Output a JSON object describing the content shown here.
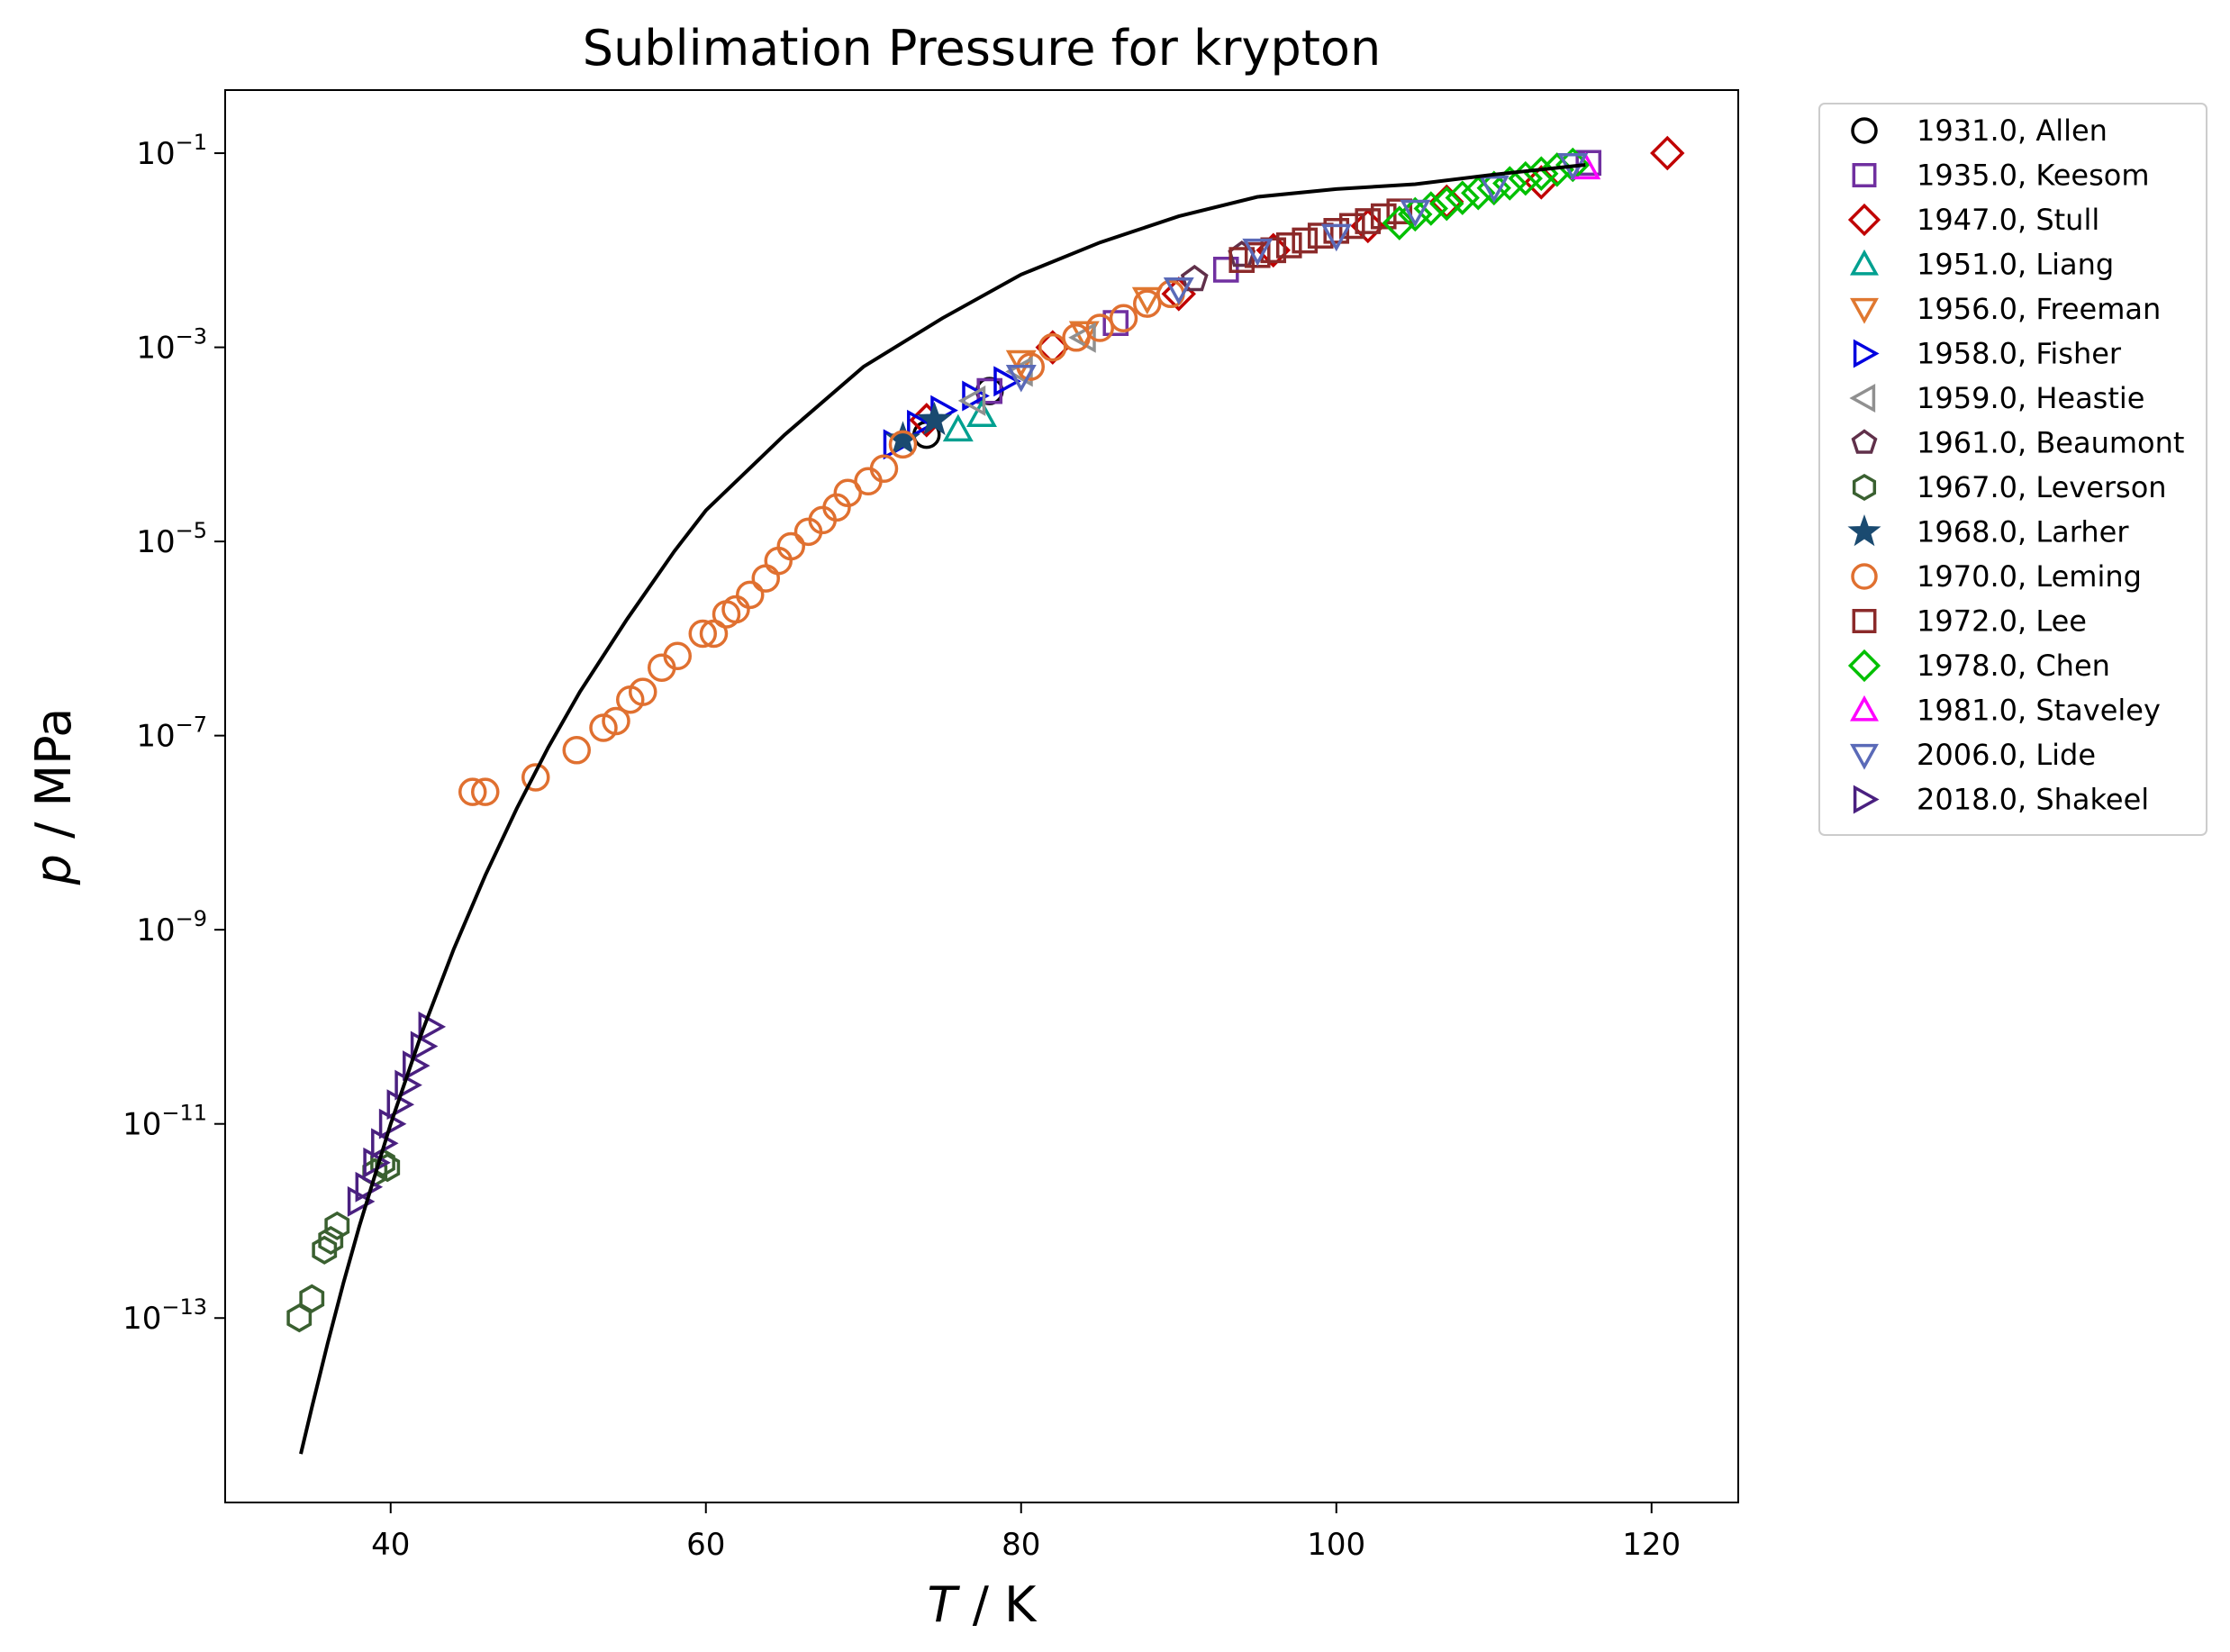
{
  "chart_data": {
    "type": "scatter",
    "title": "Sublimation Pressure for krypton",
    "xlabel_var": "T",
    "xlabel_unit": " / K",
    "ylabel_var": "p",
    "ylabel_unit": " / MPa",
    "xlim": [
      29.5,
      125.5
    ],
    "ylim_exp": [
      -14.9,
      -0.35
    ],
    "y_scale": "log",
    "x_ticks": [
      40,
      60,
      80,
      100,
      120
    ],
    "y_tick_exponents": [
      -13,
      -11,
      -9,
      -7,
      -5,
      -3,
      -1
    ],
    "y_tick_base": "10",
    "y_tick_exponent_labels": [
      "−13",
      "−11",
      "−9",
      "−7",
      "−5",
      "−3",
      "−1"
    ],
    "legend_position": "outside right",
    "fit_curve": {
      "color": "#000000",
      "T": [
        34.3,
        35,
        36,
        37,
        38,
        40,
        42,
        44,
        46,
        48,
        50,
        52,
        55,
        58,
        60,
        65,
        70,
        75,
        80,
        85,
        90,
        95,
        100,
        105,
        110,
        115.8
      ],
      "log10_p": [
        -14.4,
        -13.92,
        -13.26,
        -12.64,
        -12.06,
        -11.0,
        -10.05,
        -9.2,
        -8.44,
        -7.75,
        -7.12,
        -6.55,
        -5.8,
        -5.1,
        -4.68,
        -3.9,
        -3.2,
        -2.7,
        -2.25,
        -1.92,
        -1.65,
        -1.45,
        -1.37,
        -1.32,
        -1.22,
        -1.12
      ]
    },
    "series": [
      {
        "name": "1931.0, Allen",
        "marker": "circle",
        "color": "#000000",
        "T": [
          74.0,
          78.0
        ],
        "log10_p": [
          -3.9,
          -3.45
        ]
      },
      {
        "name": "1935.0, Keesom",
        "marker": "square",
        "color": "#7030a0",
        "T": [
          78.0,
          86.0,
          93.0,
          116.0
        ],
        "log10_p": [
          -3.45,
          -2.75,
          -2.2,
          -1.1
        ]
      },
      {
        "name": "1947.0, Stull",
        "marker": "diamond",
        "color": "#c00000",
        "T": [
          74.0,
          82.0,
          90.0,
          96.0,
          102.0,
          107.0,
          113.0,
          121.0
        ],
        "log10_p": [
          -3.75,
          -3.0,
          -2.45,
          -2.0,
          -1.75,
          -1.5,
          -1.3,
          -1.0
        ]
      },
      {
        "name": "1951.0, Liang",
        "marker": "triangle-up",
        "color": "#00a090",
        "T": [
          76.0,
          77.5
        ],
        "log10_p": [
          -3.85,
          -3.7
        ]
      },
      {
        "name": "1956.0, Freeman",
        "marker": "triangle-down",
        "color": "#e07830",
        "T": [
          80.0,
          84.0,
          88.0
        ],
        "log10_p": [
          -3.15,
          -2.85,
          -2.5
        ]
      },
      {
        "name": "1958.0, Fisher",
        "marker": "triangle-right",
        "color": "#0000e0",
        "T": [
          72.0,
          73.5,
          75.0,
          77.0,
          79.0
        ],
        "log10_p": [
          -4.0,
          -3.8,
          -3.65,
          -3.5,
          -3.35
        ]
      },
      {
        "name": "1959.0, Heastie",
        "marker": "triangle-left",
        "color": "#909090",
        "T": [
          77.0,
          80.0,
          84.0
        ],
        "log10_p": [
          -3.55,
          -3.25,
          -2.9
        ]
      },
      {
        "name": "1961.0, Beaumont",
        "marker": "pentagon",
        "color": "#60304a",
        "T": [
          91.0,
          94.0
        ],
        "log10_p": [
          -2.3,
          -2.05
        ]
      },
      {
        "name": "1967.0, Leverson",
        "marker": "hexagon",
        "color": "#3a6030",
        "T": [
          34.2,
          35.0,
          35.8,
          36.2,
          36.6,
          39.0,
          39.5,
          39.8
        ],
        "log10_p": [
          -13.0,
          -12.8,
          -12.3,
          -12.2,
          -12.05,
          -11.5,
          -11.4,
          -11.45
        ]
      },
      {
        "name": "1968.0, Larher",
        "marker": "star",
        "color": "#1a4a70",
        "T": [
          72.5,
          74.5
        ],
        "log10_p": [
          -3.95,
          -3.75
        ]
      },
      {
        "name": "1970.0, Leming",
        "marker": "circle",
        "color": "#e07030",
        "T": [
          45.2,
          46.0,
          49.2,
          51.8,
          53.5,
          54.3,
          55.2,
          56.0,
          57.2,
          58.2,
          59.8,
          60.5,
          61.3,
          61.9,
          62.8,
          63.8,
          64.6,
          65.4,
          66.5,
          67.4,
          68.3,
          69.0,
          70.3,
          71.3,
          72.5,
          80.6,
          82.0,
          83.5,
          85.0,
          86.5,
          88.0,
          89.5
        ],
        "log10_p": [
          -7.58,
          -7.58,
          -7.43,
          -7.15,
          -6.92,
          -6.85,
          -6.63,
          -6.55,
          -6.3,
          -6.18,
          -5.95,
          -5.95,
          -5.75,
          -5.7,
          -5.55,
          -5.38,
          -5.2,
          -5.05,
          -4.9,
          -4.78,
          -4.65,
          -4.5,
          -4.38,
          -4.25,
          -4.0,
          -3.2,
          -3.0,
          -2.9,
          -2.8,
          -2.7,
          -2.55,
          -2.45
        ]
      },
      {
        "name": "1972.0, Lee",
        "marker": "square",
        "color": "#8b2a2a",
        "T": [
          94,
          95,
          96,
          97,
          98,
          99,
          100,
          101,
          102,
          103,
          104
        ],
        "log10_p": [
          -2.1,
          -2.05,
          -2.0,
          -1.95,
          -1.9,
          -1.85,
          -1.8,
          -1.75,
          -1.7,
          -1.65,
          -1.6
        ]
      },
      {
        "name": "1978.0, Chen",
        "marker": "diamond",
        "color": "#00c000",
        "T": [
          104,
          105,
          106,
          107,
          108,
          109,
          110,
          111,
          112,
          113,
          114,
          115
        ],
        "log10_p": [
          -1.72,
          -1.63,
          -1.57,
          -1.52,
          -1.46,
          -1.41,
          -1.36,
          -1.31,
          -1.26,
          -1.21,
          -1.17,
          -1.12
        ]
      },
      {
        "name": "1981.0, Staveley",
        "marker": "triangle-up",
        "color": "#ff00ff",
        "T": [
          115.8
        ],
        "log10_p": [
          -1.15
        ]
      },
      {
        "name": "2006.0, Lide",
        "marker": "triangle-down",
        "color": "#5a6ab8",
        "T": [
          80,
          90,
          95,
          100,
          105,
          110,
          115
        ],
        "log10_p": [
          -3.3,
          -2.4,
          -2.0,
          -1.85,
          -1.6,
          -1.35,
          -1.12
        ]
      },
      {
        "name": "2018.0, Shakeel",
        "marker": "triangle-right",
        "color": "#4a2080",
        "T": [
          38.0,
          38.5,
          39.0,
          39.5,
          40.0,
          40.5,
          41.0,
          41.5,
          42.0,
          42.5
        ],
        "log10_p": [
          -11.8,
          -11.65,
          -11.4,
          -11.2,
          -11.0,
          -10.8,
          -10.6,
          -10.4,
          -10.2,
          -10.0
        ]
      }
    ]
  }
}
